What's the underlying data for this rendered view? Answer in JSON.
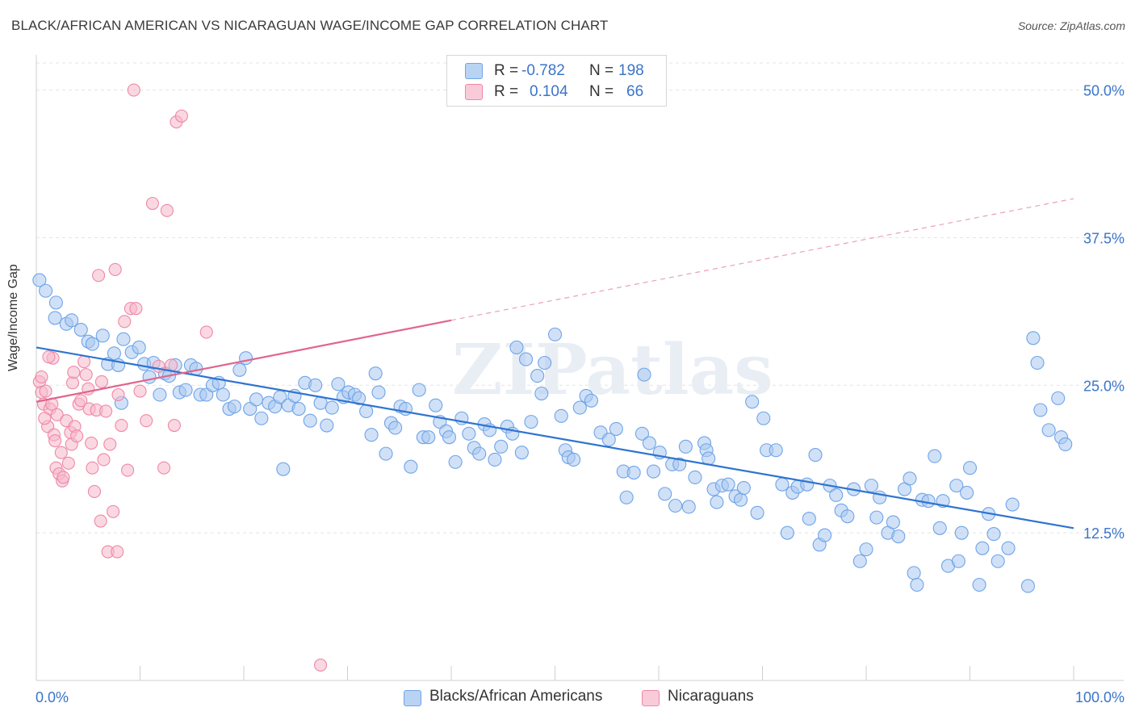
{
  "title": "BLACK/AFRICAN AMERICAN VS NICARAGUAN WAGE/INCOME GAP CORRELATION CHART",
  "source": "Source: ZipAtlas.com",
  "watermark": "ZIPatlas",
  "legend": {
    "rows": [
      {
        "r_label": "R =",
        "r_value": "-0.782",
        "n_label": "N =",
        "n_value": "198",
        "color": "#a9c9f0"
      },
      {
        "r_label": "R =",
        "r_value": "0.104",
        "n_label": "N =",
        "n_value": "66",
        "color": "#f5b8cb"
      }
    ]
  },
  "bottom_legend": {
    "series1": "Blacks/African Americans",
    "series2": "Nicaraguans"
  },
  "chart_data": {
    "type": "scatter",
    "title": "BLACK/AFRICAN AMERICAN VS NICARAGUAN WAGE/INCOME GAP CORRELATION CHART",
    "xlabel": "",
    "ylabel": "Wage/Income Gap",
    "xlim": [
      0,
      100
    ],
    "ylim": [
      0,
      52.5
    ],
    "x_tick_labels": [
      "0.0%",
      "100.0%"
    ],
    "y_ticks": [
      12.5,
      25.0,
      37.5,
      50.0
    ],
    "y_tick_labels": [
      "12.5%",
      "25.0%",
      "37.5%",
      "50.0%"
    ],
    "grid": true,
    "series": [
      {
        "name": "Blacks/African Americans",
        "color": "#6fa4e8",
        "fill": "#a9c9f0",
        "R": -0.782,
        "N": 198,
        "trend": {
          "x0": 0,
          "y0": 28.2,
          "x1": 100,
          "y1": 12.9
        },
        "points": [
          [
            0.3,
            33.9
          ],
          [
            0.9,
            33
          ],
          [
            1.9,
            32
          ],
          [
            1.8,
            30.7
          ],
          [
            2.9,
            30.2
          ],
          [
            3.4,
            30.5
          ],
          [
            4.3,
            29.7
          ],
          [
            5,
            28.7
          ],
          [
            5.4,
            28.5
          ],
          [
            6.4,
            29.2
          ],
          [
            6.9,
            26.8
          ],
          [
            7.5,
            27.7
          ],
          [
            7.9,
            26.7
          ],
          [
            8.2,
            23.5
          ],
          [
            8.4,
            28.9
          ],
          [
            9.2,
            27.8
          ],
          [
            9.9,
            28.2
          ],
          [
            10.4,
            26.8
          ],
          [
            10.9,
            25.7
          ],
          [
            11.3,
            26.9
          ],
          [
            11.9,
            24.2
          ],
          [
            12.4,
            26
          ],
          [
            12.8,
            25.8
          ],
          [
            13.4,
            26.7
          ],
          [
            13.8,
            24.4
          ],
          [
            14.4,
            24.6
          ],
          [
            14.9,
            26.7
          ],
          [
            15.4,
            26.4
          ],
          [
            15.8,
            24.2
          ],
          [
            16.4,
            24.2
          ],
          [
            17,
            25
          ],
          [
            17.6,
            25.2
          ],
          [
            18,
            24.2
          ],
          [
            18.6,
            23
          ],
          [
            19.1,
            23.2
          ],
          [
            19.6,
            26.3
          ],
          [
            20.2,
            27.3
          ],
          [
            20.6,
            23
          ],
          [
            21.2,
            23.8
          ],
          [
            21.7,
            22.2
          ],
          [
            22.4,
            23.5
          ],
          [
            23,
            23.2
          ],
          [
            23.5,
            24
          ],
          [
            23.8,
            17.9
          ],
          [
            24.3,
            23.3
          ],
          [
            24.9,
            24.1
          ],
          [
            25.3,
            23
          ],
          [
            25.9,
            25.2
          ],
          [
            26.4,
            22
          ],
          [
            26.9,
            25
          ],
          [
            27.4,
            23.5
          ],
          [
            28,
            21.6
          ],
          [
            28.5,
            23.1
          ],
          [
            29.1,
            25.1
          ],
          [
            29.6,
            24
          ],
          [
            30.1,
            24.4
          ],
          [
            30.7,
            24.2
          ],
          [
            31.1,
            23.9
          ],
          [
            31.8,
            22.8
          ],
          [
            32.3,
            20.8
          ],
          [
            32.7,
            26
          ],
          [
            33,
            24.4
          ],
          [
            33.7,
            19.2
          ],
          [
            34.2,
            21.8
          ],
          [
            34.6,
            21.4
          ],
          [
            35.1,
            23.2
          ],
          [
            35.6,
            23
          ],
          [
            36.1,
            18.1
          ],
          [
            36.9,
            24.6
          ],
          [
            37.3,
            20.6
          ],
          [
            37.8,
            20.6
          ],
          [
            38.5,
            23.3
          ],
          [
            38.9,
            21.9
          ],
          [
            39.5,
            21.1
          ],
          [
            39.8,
            20.6
          ],
          [
            40.4,
            18.5
          ],
          [
            41,
            22.2
          ],
          [
            41.7,
            20.9
          ],
          [
            42.2,
            19.7
          ],
          [
            42.7,
            19.2
          ],
          [
            43.2,
            21.7
          ],
          [
            43.7,
            21.2
          ],
          [
            44.2,
            18.7
          ],
          [
            44.8,
            19.8
          ],
          [
            45.4,
            21.5
          ],
          [
            45.9,
            20.9
          ],
          [
            46.3,
            28.2
          ],
          [
            46.8,
            19.3
          ],
          [
            47.2,
            27.2
          ],
          [
            47.7,
            21.9
          ],
          [
            48.3,
            25.8
          ],
          [
            48.7,
            24.3
          ],
          [
            49,
            26.9
          ],
          [
            50,
            29.3
          ],
          [
            50.6,
            22.4
          ],
          [
            51,
            19.5
          ],
          [
            51.3,
            18.9
          ],
          [
            51.8,
            18.7
          ],
          [
            52.4,
            23.1
          ],
          [
            53,
            24.1
          ],
          [
            53.5,
            23.7
          ],
          [
            54.4,
            21
          ],
          [
            55.2,
            20.4
          ],
          [
            55.9,
            21.3
          ],
          [
            56.6,
            17.7
          ],
          [
            56.9,
            15.5
          ],
          [
            57.6,
            17.6
          ],
          [
            58.4,
            20.9
          ],
          [
            58.6,
            25.9
          ],
          [
            59.1,
            20.1
          ],
          [
            59.5,
            17.7
          ],
          [
            60.1,
            19.3
          ],
          [
            60.6,
            15.8
          ],
          [
            61.3,
            18.3
          ],
          [
            61.6,
            14.8
          ],
          [
            62,
            18.3
          ],
          [
            62.6,
            19.8
          ],
          [
            62.9,
            14.7
          ],
          [
            63.5,
            17.2
          ],
          [
            64.4,
            20.1
          ],
          [
            64.6,
            19.5
          ],
          [
            64.8,
            18.8
          ],
          [
            65.3,
            16.2
          ],
          [
            65.6,
            15.1
          ],
          [
            66.1,
            16.5
          ],
          [
            66.7,
            16.6
          ],
          [
            67.4,
            15.6
          ],
          [
            67.9,
            15.3
          ],
          [
            68.2,
            16.3
          ],
          [
            69,
            23.6
          ],
          [
            69.5,
            14.2
          ],
          [
            70.1,
            22.2
          ],
          [
            70.4,
            19.5
          ],
          [
            71.3,
            19.5
          ],
          [
            71.9,
            16.6
          ],
          [
            72.4,
            12.5
          ],
          [
            72.9,
            15.9
          ],
          [
            73.4,
            16.4
          ],
          [
            74.3,
            16.6
          ],
          [
            74.5,
            13.7
          ],
          [
            75.1,
            19.1
          ],
          [
            75.5,
            11.5
          ],
          [
            76,
            12.3
          ],
          [
            76.5,
            16.5
          ],
          [
            77.1,
            15.7
          ],
          [
            77.6,
            14.4
          ],
          [
            78.2,
            13.9
          ],
          [
            78.8,
            16.2
          ],
          [
            79.4,
            10.1
          ],
          [
            80,
            11.1
          ],
          [
            80.5,
            16.5
          ],
          [
            81,
            13.8
          ],
          [
            81.3,
            15.5
          ],
          [
            82.1,
            12.5
          ],
          [
            82.6,
            13.4
          ],
          [
            83.1,
            12.2
          ],
          [
            83.7,
            16.2
          ],
          [
            84.2,
            17.1
          ],
          [
            84.6,
            9.1
          ],
          [
            84.9,
            8.1
          ],
          [
            85.4,
            15.3
          ],
          [
            86,
            15.2
          ],
          [
            86.6,
            19
          ],
          [
            87.1,
            12.9
          ],
          [
            87.4,
            15.2
          ],
          [
            87.9,
            9.7
          ],
          [
            88.7,
            16.5
          ],
          [
            88.9,
            10.1
          ],
          [
            89.2,
            12.5
          ],
          [
            89.7,
            15.9
          ],
          [
            90,
            18
          ],
          [
            90.9,
            8.1
          ],
          [
            91.2,
            11.2
          ],
          [
            91.8,
            14.1
          ],
          [
            92.3,
            12.4
          ],
          [
            92.7,
            10.1
          ],
          [
            93.7,
            11.2
          ],
          [
            94.1,
            14.9
          ],
          [
            95.6,
            8
          ],
          [
            96.1,
            29
          ],
          [
            96.5,
            26.9
          ],
          [
            96.8,
            22.9
          ],
          [
            97.6,
            21.2
          ],
          [
            98.5,
            23.9
          ],
          [
            98.8,
            20.6
          ],
          [
            99.2,
            20
          ]
        ]
      },
      {
        "name": "Nicaraguans",
        "color": "#ef87a8",
        "fill": "#f5b8cb",
        "R": 0.104,
        "N": 66,
        "trend_solid": {
          "x0": 0,
          "y0": 23.6,
          "x1": 40,
          "y1": 30.5
        },
        "trend_dashed": {
          "x0": 40,
          "y0": 30.5,
          "x1": 100,
          "y1": 40.8
        },
        "points": [
          [
            0.3,
            25.3
          ],
          [
            0.5,
            24.4
          ],
          [
            0.7,
            23.4
          ],
          [
            0.9,
            24.5
          ],
          [
            1.1,
            21.5
          ],
          [
            1.3,
            23
          ],
          [
            1.5,
            23.4
          ],
          [
            1.6,
            27.3
          ],
          [
            1.7,
            20.8
          ],
          [
            1.8,
            20.3
          ],
          [
            1.9,
            18
          ],
          [
            2,
            22.5
          ],
          [
            2.2,
            17.5
          ],
          [
            2.4,
            19.3
          ],
          [
            2.5,
            16.9
          ],
          [
            2.6,
            17.2
          ],
          [
            2.9,
            22
          ],
          [
            3.1,
            18.4
          ],
          [
            3.3,
            21
          ],
          [
            3.4,
            20
          ],
          [
            3.5,
            25.2
          ],
          [
            3.6,
            26.1
          ],
          [
            3.7,
            21.5
          ],
          [
            3.9,
            20.7
          ],
          [
            4.1,
            23.4
          ],
          [
            4.3,
            23.7
          ],
          [
            4.6,
            27
          ],
          [
            4.8,
            25.9
          ],
          [
            5,
            24.7
          ],
          [
            5.1,
            23
          ],
          [
            5.3,
            20.1
          ],
          [
            5.4,
            18
          ],
          [
            5.6,
            16
          ],
          [
            5.8,
            22.9
          ],
          [
            6,
            34.3
          ],
          [
            6.2,
            13.5
          ],
          [
            6.3,
            25.3
          ],
          [
            6.5,
            18.7
          ],
          [
            6.7,
            22.8
          ],
          [
            6.9,
            10.9
          ],
          [
            7.1,
            20
          ],
          [
            7.4,
            14.3
          ],
          [
            7.6,
            34.8
          ],
          [
            7.8,
            10.9
          ],
          [
            7.9,
            24.2
          ],
          [
            8.2,
            21.6
          ],
          [
            8.5,
            30.4
          ],
          [
            8.8,
            17.8
          ],
          [
            9.1,
            31.5
          ],
          [
            9.4,
            50
          ],
          [
            9.6,
            31.5
          ],
          [
            10,
            24.5
          ],
          [
            10.6,
            22
          ],
          [
            11.2,
            40.4
          ],
          [
            11.8,
            26.6
          ],
          [
            12.3,
            18
          ],
          [
            12.6,
            39.8
          ],
          [
            13,
            26.7
          ],
          [
            13.3,
            21.6
          ],
          [
            13.5,
            47.3
          ],
          [
            14,
            47.8
          ],
          [
            16.4,
            29.5
          ],
          [
            27.4,
            1.3
          ],
          [
            0.5,
            25.7
          ],
          [
            0.8,
            22.2
          ],
          [
            1.2,
            27.4
          ]
        ]
      }
    ]
  }
}
